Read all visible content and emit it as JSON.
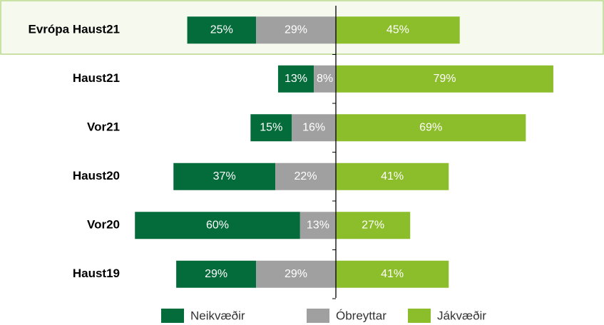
{
  "chart_data": {
    "type": "diverging-bar",
    "categories": [
      "Evrópa Haust21",
      "Haust21",
      "Vor21",
      "Haust20",
      "Vor20",
      "Haust19"
    ],
    "series": [
      {
        "name": "Neikvæðir",
        "color": "#046b3a",
        "values": [
          25,
          13,
          15,
          37,
          60,
          29
        ],
        "value_labels": [
          "25%",
          "13%",
          "15%",
          "37%",
          "60%",
          "29%"
        ]
      },
      {
        "name": "Óbreyttar",
        "color": "#a0a0a0",
        "values": [
          29,
          8,
          16,
          22,
          13,
          29
        ],
        "value_labels": [
          "29%",
          "8%",
          "16%",
          "22%",
          "13%",
          "29%"
        ]
      },
      {
        "name": "Jákvæðir",
        "color": "#8cbd2a",
        "values": [
          45,
          79,
          69,
          41,
          27,
          41
        ],
        "value_labels": [
          "45%",
          "79%",
          "69%",
          "41%",
          "27%",
          "41%"
        ]
      }
    ]
  }
}
